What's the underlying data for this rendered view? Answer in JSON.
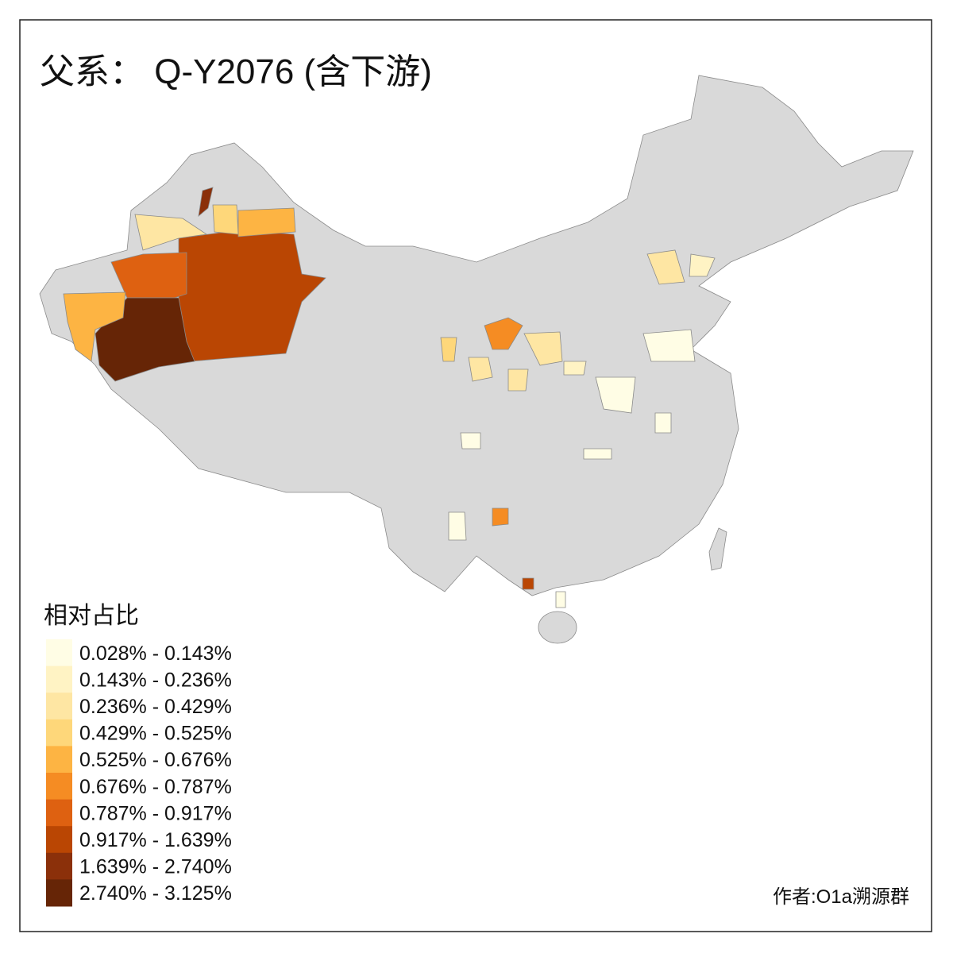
{
  "title": "父系： Q-Y2076 (含下游)",
  "legend": {
    "title": "相对占比",
    "items": [
      {
        "label": "0.028% - 0.143%",
        "color": "#fffde5"
      },
      {
        "label": "0.143% - 0.236%",
        "color": "#fff3c4"
      },
      {
        "label": "0.236% - 0.429%",
        "color": "#fee6a3"
      },
      {
        "label": "0.429% - 0.525%",
        "color": "#fed77a"
      },
      {
        "label": "0.525% - 0.676%",
        "color": "#fdb443"
      },
      {
        "label": "0.676% - 0.787%",
        "color": "#f58c23"
      },
      {
        "label": "0.787% - 0.917%",
        "color": "#de6111"
      },
      {
        "label": "0.917% - 1.639%",
        "color": "#ba4603"
      },
      {
        "label": "1.639% - 2.740%",
        "color": "#8b300a"
      },
      {
        "label": "2.740% - 3.125%",
        "color": "#662506"
      }
    ]
  },
  "credit": "作者:O1a溯源群"
}
